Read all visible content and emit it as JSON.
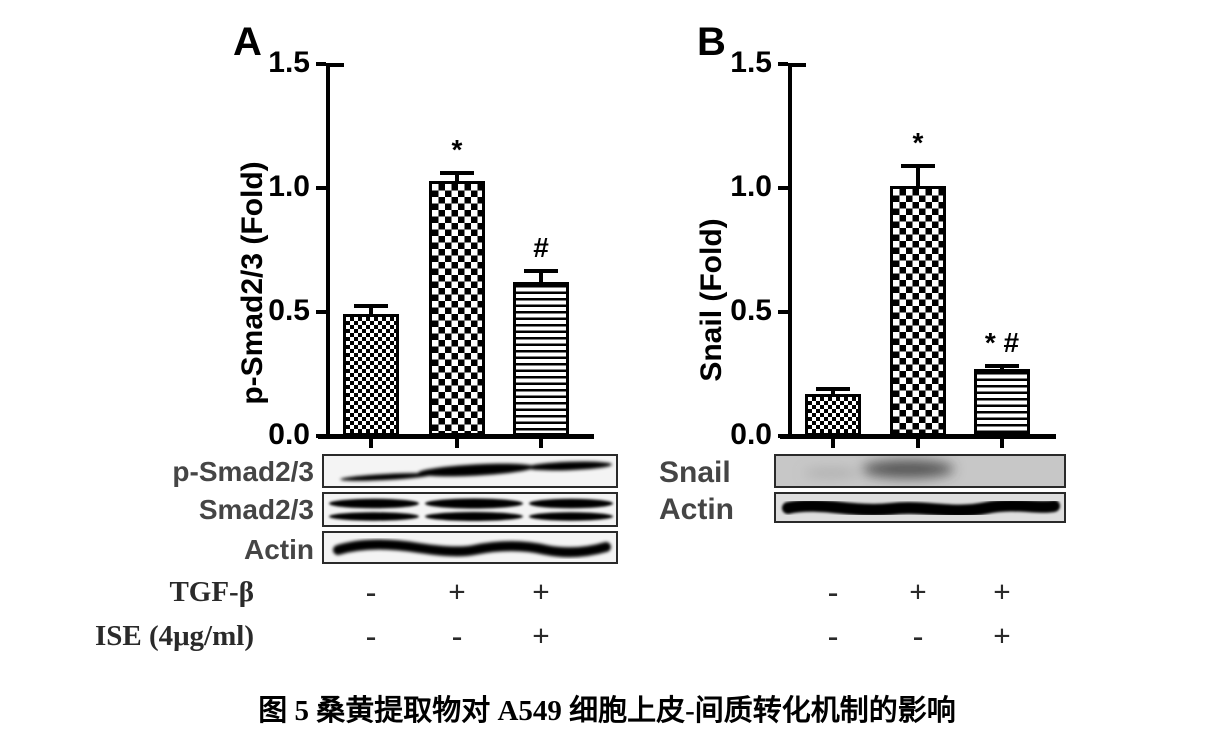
{
  "figure": {
    "caption": "图 5 桑黄提取物对 A549 细胞上皮-间质转化机制的影响"
  },
  "panels": [
    {
      "letter": "A",
      "ylabel": "p-Smad2/3 (Fold)",
      "blots": [
        {
          "label": "p-Smad2/3"
        },
        {
          "label": "Smad2/3"
        },
        {
          "label": "Actin"
        }
      ]
    },
    {
      "letter": "B",
      "ylabel": "Snail (Fold)",
      "blots": [
        {
          "label": "Snail"
        },
        {
          "label": "Actin"
        }
      ]
    }
  ],
  "treatments": [
    {
      "label": "TGF-β",
      "signs": {
        "A": [
          "-",
          "+",
          "+"
        ],
        "B": [
          "-",
          "+",
          "+"
        ]
      }
    },
    {
      "label": "ISE (4μg/ml)",
      "signs": {
        "A": [
          "-",
          "-",
          "+"
        ],
        "B": [
          "-",
          "-",
          "+"
        ]
      }
    }
  ],
  "chart_data": [
    {
      "type": "bar",
      "panel": "A",
      "ylabel": "p-Smad2/3 (Fold)",
      "categories": [
        "TGF-β − / ISE −",
        "TGF-β + / ISE −",
        "TGF-β + / ISE +"
      ],
      "values": [
        0.49,
        1.03,
        0.62
      ],
      "errors": [
        0.035,
        0.03,
        0.045
      ],
      "significance": [
        "",
        "*",
        "#"
      ],
      "ylim": [
        0,
        1.5
      ],
      "yticks": [
        0,
        0.5,
        1.0,
        1.5
      ],
      "bar_patterns": [
        "fine-checker",
        "large-checker",
        "horizontal-lines"
      ],
      "grid": false,
      "legend": false
    },
    {
      "type": "bar",
      "panel": "B",
      "ylabel": "Snail (Fold)",
      "categories": [
        "TGF-β − / ISE −",
        "TGF-β + / ISE −",
        "TGF-β + / ISE +"
      ],
      "values": [
        0.17,
        1.01,
        0.27
      ],
      "errors": [
        0.02,
        0.08,
        0.012
      ],
      "significance": [
        "",
        "*",
        "* #"
      ],
      "ylim": [
        0,
        1.5
      ],
      "yticks": [
        0,
        0.5,
        1.0,
        1.5
      ],
      "bar_patterns": [
        "fine-checker",
        "large-checker",
        "horizontal-lines"
      ],
      "grid": false,
      "legend": false
    }
  ]
}
